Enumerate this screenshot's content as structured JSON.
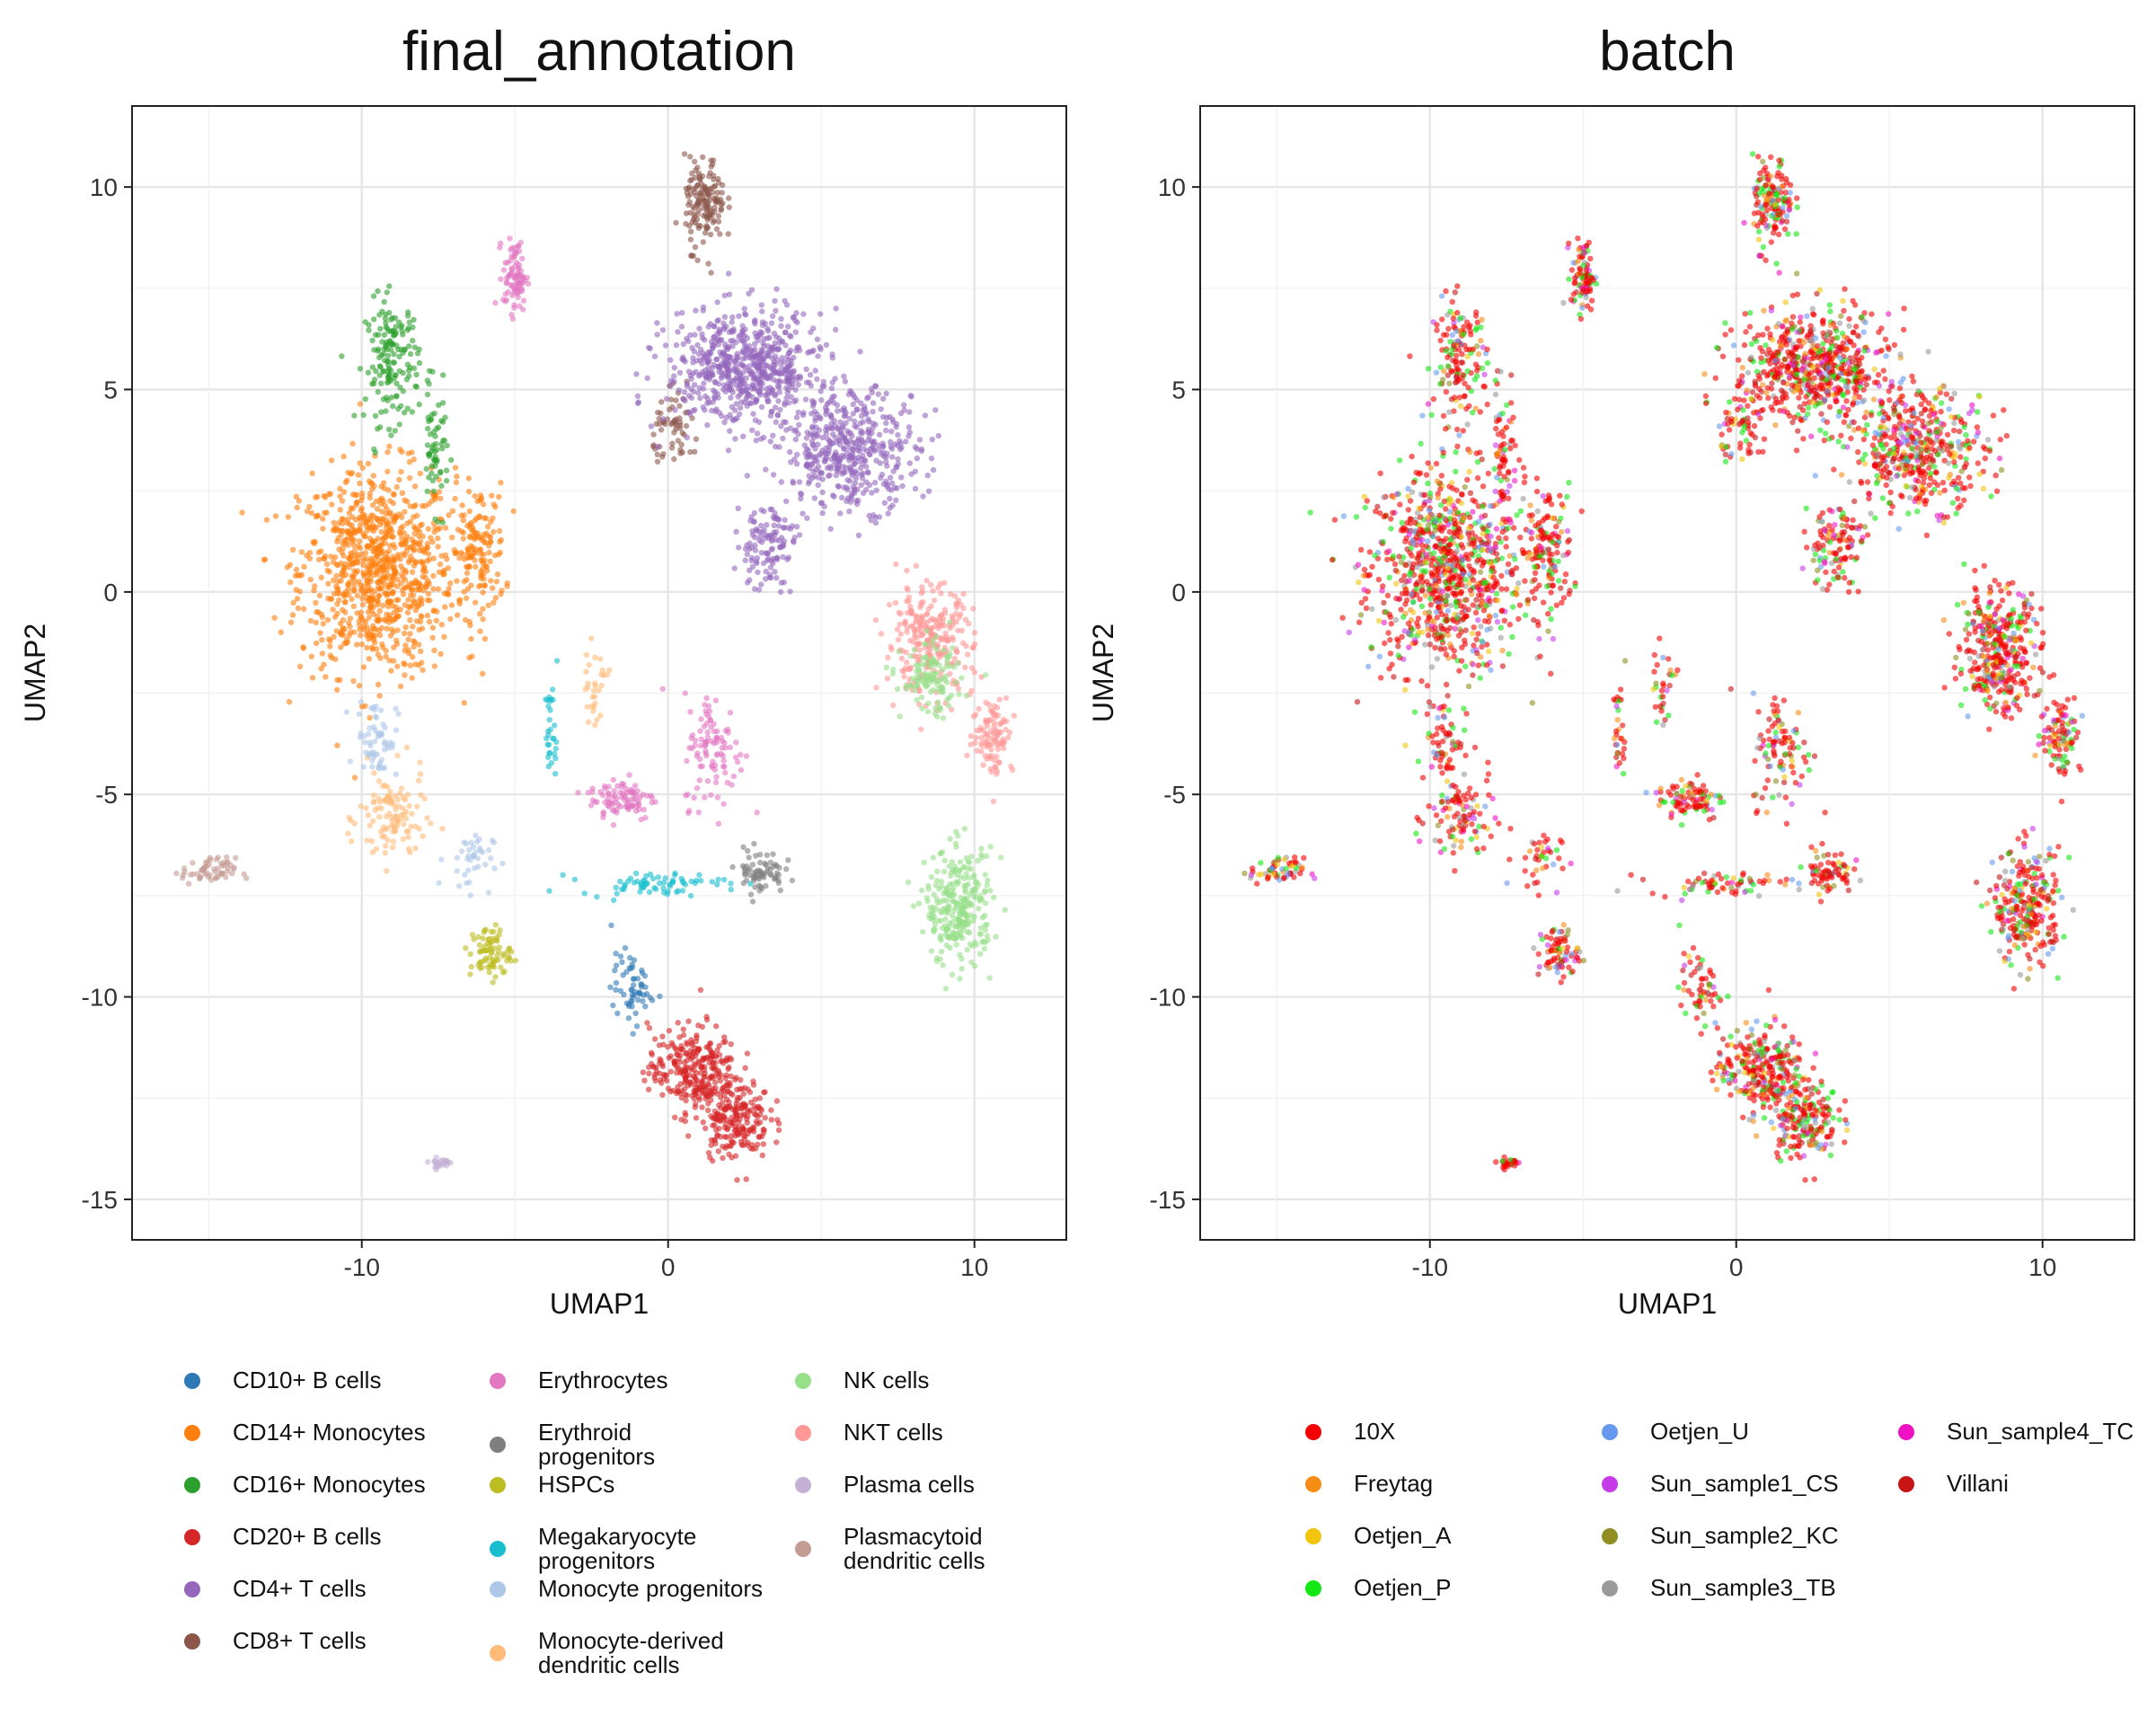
{
  "chart_data": [
    {
      "type": "scatter",
      "title": "final_annotation",
      "xlabel": "UMAP1",
      "ylabel": "UMAP2",
      "xlim": [
        -17.5,
        13.0
      ],
      "ylim": [
        -16.0,
        12.0
      ],
      "xticks": [
        -10,
        0,
        10
      ],
      "yticks": [
        10,
        5,
        0,
        -5,
        -10,
        -15
      ],
      "grid": true,
      "legend_position": "bottom",
      "legend": [
        {
          "name": "CD10+ B cells",
          "color": "#2E79B5"
        },
        {
          "name": "CD14+ Monocytes",
          "color": "#FF7F0E"
        },
        {
          "name": "CD16+ Monocytes",
          "color": "#2CA02C"
        },
        {
          "name": "CD20+ B cells",
          "color": "#D62728"
        },
        {
          "name": "CD4+ T cells",
          "color": "#9467BD"
        },
        {
          "name": "CD8+ T cells",
          "color": "#8C564B"
        },
        {
          "name": "Erythrocytes",
          "color": "#E377C2"
        },
        {
          "name": "Erythroid\nprogenitors",
          "color": "#7F7F7F"
        },
        {
          "name": "HSPCs",
          "color": "#BCBD22"
        },
        {
          "name": "Megakaryocyte\nprogenitors",
          "color": "#17BECF"
        },
        {
          "name": "Monocyte progenitors",
          "color": "#AEC7E8"
        },
        {
          "name": "Monocyte-derived\ndendritic cells",
          "color": "#FFBB78"
        },
        {
          "name": "NK cells",
          "color": "#98DF8A"
        },
        {
          "name": "NKT cells",
          "color": "#FF9896"
        },
        {
          "name": "Plasma cells",
          "color": "#C5B0D5"
        },
        {
          "name": "Plasmacytoid\ndendritic cells",
          "color": "#C49C94"
        }
      ],
      "clusters": [
        {
          "label": "CD14+ Monocytes",
          "center": [
            -9.5,
            0.5
          ],
          "spread": [
            2.3,
            2.3
          ],
          "n": 900
        },
        {
          "label": "CD14+ Monocytes",
          "center": [
            -6.2,
            1.0
          ],
          "spread": [
            0.8,
            1.5
          ],
          "n": 150
        },
        {
          "label": "CD16+ Monocytes",
          "center": [
            -9.0,
            5.7
          ],
          "spread": [
            0.8,
            1.4
          ],
          "n": 160
        },
        {
          "label": "CD16+ Monocytes",
          "center": [
            -7.6,
            3.5
          ],
          "spread": [
            0.4,
            1.3
          ],
          "n": 60
        },
        {
          "label": "Monocyte-derived dendritic cells",
          "center": [
            -9.0,
            -5.6
          ],
          "spread": [
            1.0,
            1.1
          ],
          "n": 110
        },
        {
          "label": "Monocyte-derived dendritic cells",
          "center": [
            -2.4,
            -2.3
          ],
          "spread": [
            0.4,
            0.8
          ],
          "n": 30
        },
        {
          "label": "Monocyte progenitors",
          "center": [
            -9.5,
            -3.6
          ],
          "spread": [
            0.6,
            0.9
          ],
          "n": 60
        },
        {
          "label": "Monocyte progenitors",
          "center": [
            -6.5,
            -6.6
          ],
          "spread": [
            0.7,
            0.7
          ],
          "n": 40
        },
        {
          "label": "Plasmacytoid dendritic cells",
          "center": [
            -15.0,
            -6.9
          ],
          "spread": [
            0.8,
            0.3
          ],
          "n": 60
        },
        {
          "label": "Erythrocytes",
          "center": [
            -5.0,
            7.8
          ],
          "spread": [
            0.35,
            0.8
          ],
          "n": 90
        },
        {
          "label": "Erythrocytes",
          "center": [
            -1.5,
            -5.1
          ],
          "spread": [
            1.0,
            0.5
          ],
          "n": 90
        },
        {
          "label": "Erythrocytes",
          "center": [
            1.5,
            -3.9
          ],
          "spread": [
            0.9,
            1.3
          ],
          "n": 100
        },
        {
          "label": "Erythroid progenitors",
          "center": [
            3.0,
            -6.9
          ],
          "spread": [
            0.7,
            0.5
          ],
          "n": 70
        },
        {
          "label": "Megakaryocyte progenitors",
          "center": [
            -0.5,
            -7.2
          ],
          "spread": [
            2.2,
            0.25
          ],
          "n": 70
        },
        {
          "label": "Megakaryocyte progenitors",
          "center": [
            -3.8,
            -3.5
          ],
          "spread": [
            0.2,
            1.2
          ],
          "n": 30
        },
        {
          "label": "HSPCs",
          "center": [
            -5.8,
            -8.9
          ],
          "spread": [
            0.6,
            0.6
          ],
          "n": 80
        },
        {
          "label": "CD10+ B cells",
          "center": [
            -1.2,
            -9.8
          ],
          "spread": [
            0.6,
            0.8
          ],
          "n": 60
        },
        {
          "label": "CD20+ B cells",
          "center": [
            0.8,
            -11.8
          ],
          "spread": [
            1.3,
            1.0
          ],
          "n": 280
        },
        {
          "label": "CD20+ B cells",
          "center": [
            2.2,
            -13.0
          ],
          "spread": [
            1.0,
            0.9
          ],
          "n": 200
        },
        {
          "label": "CD8+ T cells",
          "center": [
            1.2,
            9.6
          ],
          "spread": [
            0.6,
            1.0
          ],
          "n": 150
        },
        {
          "label": "CD8+ T cells",
          "center": [
            0.3,
            4.0
          ],
          "spread": [
            0.7,
            0.8
          ],
          "n": 60
        },
        {
          "label": "CD4+ T cells",
          "center": [
            2.5,
            5.5
          ],
          "spread": [
            2.3,
            1.3
          ],
          "n": 650
        },
        {
          "label": "CD4+ T cells",
          "center": [
            6.0,
            3.5
          ],
          "spread": [
            2.0,
            1.3
          ],
          "n": 450
        },
        {
          "label": "CD4+ T cells",
          "center": [
            3.2,
            1.2
          ],
          "spread": [
            0.9,
            1.0
          ],
          "n": 120
        },
        {
          "label": "NKT cells",
          "center": [
            8.5,
            -1.2
          ],
          "spread": [
            1.3,
            1.2
          ],
          "n": 260
        },
        {
          "label": "NKT cells",
          "center": [
            10.6,
            -3.5
          ],
          "spread": [
            0.6,
            0.9
          ],
          "n": 100
        },
        {
          "label": "NK cells",
          "center": [
            9.5,
            -7.8
          ],
          "spread": [
            1.0,
            1.3
          ],
          "n": 280
        },
        {
          "label": "NK cells",
          "center": [
            8.6,
            -2.2
          ],
          "spread": [
            0.9,
            0.8
          ],
          "n": 120
        },
        {
          "label": "Plasma cells",
          "center": [
            -7.4,
            -14.1
          ],
          "spread": [
            0.35,
            0.15
          ],
          "n": 25
        }
      ]
    },
    {
      "type": "scatter",
      "title": "batch",
      "xlabel": "UMAP1",
      "ylabel": "UMAP2",
      "xlim": [
        -17.5,
        13.0
      ],
      "ylim": [
        -16.0,
        12.0
      ],
      "xticks": [
        -10,
        0,
        10
      ],
      "yticks": [
        10,
        5,
        0,
        -5,
        -10,
        -15
      ],
      "grid": true,
      "legend_position": "bottom",
      "legend": [
        {
          "name": "10X",
          "color": "#F40000"
        },
        {
          "name": "Freytag",
          "color": "#F68C13"
        },
        {
          "name": "Oetjen_A",
          "color": "#F2C40C"
        },
        {
          "name": "Oetjen_P",
          "color": "#14E614"
        },
        {
          "name": "Oetjen_U",
          "color": "#6699EE"
        },
        {
          "name": "Sun_sample1_CS",
          "color": "#C63AE8"
        },
        {
          "name": "Sun_sample2_KC",
          "color": "#8E8E22"
        },
        {
          "name": "Sun_sample3_TB",
          "color": "#9A9A9A"
        },
        {
          "name": "Sun_sample4_TC",
          "color": "#EE12C4"
        },
        {
          "name": "Villani",
          "color": "#C81414"
        }
      ]
    }
  ]
}
